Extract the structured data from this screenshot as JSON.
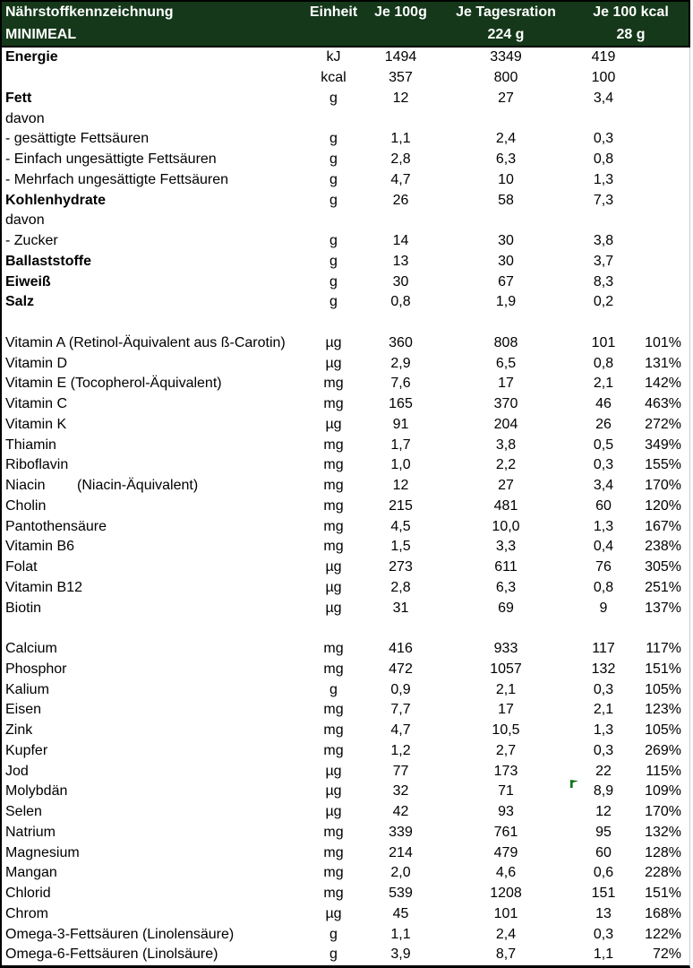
{
  "colors": {
    "header_bg": "#143819",
    "header_text": "#ffffff",
    "body_text": "#000000",
    "border": "#000000",
    "flag_green": "#0e7318"
  },
  "header": {
    "title": "Nährstoffkennzeichnung",
    "product": "MINIMEAL",
    "columns": [
      "Einheit",
      "Je 100g",
      "Je Tagesration",
      "Je 100 kcal"
    ],
    "portion": "224 g",
    "kcal_portion": "28 g"
  },
  "rows": [
    {
      "label": "Energie",
      "bold": true,
      "unit": "kJ",
      "per_100g": "1494",
      "per_day": "3349",
      "per_100kcal": "419",
      "pct": ""
    },
    {
      "label": "",
      "unit": "kcal",
      "per_100g": "357",
      "per_day": "800",
      "per_100kcal": "100",
      "pct": ""
    },
    {
      "label": "Fett",
      "bold": true,
      "unit": "g",
      "per_100g": "12",
      "per_day": "27",
      "per_100kcal": "3,4",
      "pct": ""
    },
    {
      "label": "davon",
      "unit": "",
      "per_100g": "",
      "per_day": "",
      "per_100kcal": "",
      "pct": ""
    },
    {
      "label": "- gesättigte Fettsäuren",
      "indent": true,
      "unit": "g",
      "per_100g": "1,1",
      "per_day": "2,4",
      "per_100kcal": "0,3",
      "pct": ""
    },
    {
      "label": "- Einfach ungesättigte Fettsäuren",
      "indent": true,
      "unit": "g",
      "per_100g": "2,8",
      "per_day": "6,3",
      "per_100kcal": "0,8",
      "pct": ""
    },
    {
      "label": "- Mehrfach ungesättigte Fettsäuren",
      "indent": true,
      "unit": "g",
      "per_100g": "4,7",
      "per_day": "10",
      "per_100kcal": "1,3",
      "pct": ""
    },
    {
      "label": "Kohlenhydrate",
      "bold": true,
      "unit": "g",
      "per_100g": "26",
      "per_day": "58",
      "per_100kcal": "7,3",
      "pct": ""
    },
    {
      "label": "davon",
      "unit": "",
      "per_100g": "",
      "per_day": "",
      "per_100kcal": "",
      "pct": ""
    },
    {
      "label": "- Zucker",
      "indent": true,
      "unit": "g",
      "per_100g": "14",
      "per_day": "30",
      "per_100kcal": "3,8",
      "pct": ""
    },
    {
      "label": "Ballaststoffe",
      "bold": true,
      "unit": "g",
      "per_100g": "13",
      "per_day": "30",
      "per_100kcal": "3,7",
      "pct": ""
    },
    {
      "label": "Eiweiß",
      "bold": true,
      "unit": "g",
      "per_100g": "30",
      "per_day": "67",
      "per_100kcal": "8,3",
      "pct": ""
    },
    {
      "label": "Salz",
      "bold": true,
      "unit": "g",
      "per_100g": "0,8",
      "per_day": "1,9",
      "per_100kcal": "0,2",
      "pct": ""
    },
    {
      "blank": true
    },
    {
      "label": "Vitamin A (Retinol-Äquivalent aus ß-Carotin)",
      "unit": "µg",
      "per_100g": "360",
      "per_day": "808",
      "per_100kcal": "101",
      "pct": "101%"
    },
    {
      "label": "Vitamin D",
      "unit": "µg",
      "per_100g": "2,9",
      "per_day": "6,5",
      "per_100kcal": "0,8",
      "pct": "131%"
    },
    {
      "label": "Vitamin E (Tocopherol-Äquivalent)",
      "unit": "mg",
      "per_100g": "7,6",
      "per_day": "17",
      "per_100kcal": "2,1",
      "pct": "142%"
    },
    {
      "label": "Vitamin C",
      "unit": "mg",
      "per_100g": "165",
      "per_day": "370",
      "per_100kcal": "46",
      "pct": "463%"
    },
    {
      "label": "Vitamin K",
      "unit": "µg",
      "per_100g": "91",
      "per_day": "204",
      "per_100kcal": "26",
      "pct": "272%"
    },
    {
      "label": "Thiamin",
      "unit": "mg",
      "per_100g": "1,7",
      "per_day": "3,8",
      "per_100kcal": "0,5",
      "pct": "349%"
    },
    {
      "label": "Riboflavin",
      "unit": "mg",
      "per_100g": "1,0",
      "per_day": "2,2",
      "per_100kcal": "0,3",
      "pct": "155%"
    },
    {
      "label": "Niacin",
      "label2": "(Niacin-Äquivalent)",
      "unit": "mg",
      "per_100g": "12",
      "per_day": "27",
      "per_100kcal": "3,4",
      "pct": "170%"
    },
    {
      "label": "Cholin",
      "unit": "mg",
      "per_100g": "215",
      "per_day": "481",
      "per_100kcal": "60",
      "pct": "120%"
    },
    {
      "label": "Pantothensäure",
      "unit": "mg",
      "per_100g": "4,5",
      "per_day": "10,0",
      "per_100kcal": "1,3",
      "pct": "167%"
    },
    {
      "label": "Vitamin B6",
      "unit": "mg",
      "per_100g": "1,5",
      "per_day": "3,3",
      "per_100kcal": "0,4",
      "pct": "238%"
    },
    {
      "label": "Folat",
      "unit": "µg",
      "per_100g": "273",
      "per_day": "611",
      "per_100kcal": "76",
      "pct": "305%"
    },
    {
      "label": "Vitamin B12",
      "unit": "µg",
      "per_100g": "2,8",
      "per_day": "6,3",
      "per_100kcal": "0,8",
      "pct": "251%"
    },
    {
      "label": "Biotin",
      "unit": "µg",
      "per_100g": "31",
      "per_day": "69",
      "per_100kcal": "9",
      "pct": "137%"
    },
    {
      "blank": true
    },
    {
      "label": "Calcium",
      "unit": "mg",
      "per_100g": "416",
      "per_day": "933",
      "per_100kcal": "117",
      "pct": "117%"
    },
    {
      "label": "Phosphor",
      "unit": "mg",
      "per_100g": "472",
      "per_day": "1057",
      "per_100kcal": "132",
      "pct": "151%"
    },
    {
      "label": "Kalium",
      "unit": "g",
      "per_100g": "0,9",
      "per_day": "2,1",
      "per_100kcal": "0,3",
      "pct": "105%"
    },
    {
      "label": "Eisen",
      "unit": "mg",
      "per_100g": "7,7",
      "per_day": "17",
      "per_100kcal": "2,1",
      "pct": "123%"
    },
    {
      "label": "Zink",
      "unit": "mg",
      "per_100g": "4,7",
      "per_day": "10,5",
      "per_100kcal": "1,3",
      "pct": "105%"
    },
    {
      "label": "Kupfer",
      "unit": "mg",
      "per_100g": "1,2",
      "per_day": "2,7",
      "per_100kcal": "0,3",
      "pct": "269%"
    },
    {
      "label": "Jod",
      "unit": "µg",
      "per_100g": "77",
      "per_day": "173",
      "per_100kcal": "22",
      "pct": "115%"
    },
    {
      "label": "Molybdän",
      "unit": "µg",
      "per_100g": "32",
      "per_day": "71",
      "per_100kcal": "8,9",
      "pct": "109%",
      "marker": "green-flag"
    },
    {
      "label": "Selen",
      "unit": "µg",
      "per_100g": "42",
      "per_day": "93",
      "per_100kcal": "12",
      "pct": "170%"
    },
    {
      "label": "Natrium",
      "unit": "mg",
      "per_100g": "339",
      "per_day": "761",
      "per_100kcal": "95",
      "pct": "132%"
    },
    {
      "label": "Magnesium",
      "unit": "mg",
      "per_100g": "214",
      "per_day": "479",
      "per_100kcal": "60",
      "pct": "128%"
    },
    {
      "label": "Mangan",
      "unit": "mg",
      "per_100g": "2,0",
      "per_day": "4,6",
      "per_100kcal": "0,6",
      "pct": "228%"
    },
    {
      "label": "Chlorid",
      "unit": "mg",
      "per_100g": "539",
      "per_day": "1208",
      "per_100kcal": "151",
      "pct": "151%"
    },
    {
      "label": "Chrom",
      "unit": "µg",
      "per_100g": "45",
      "per_day": "101",
      "per_100kcal": "13",
      "pct": "168%"
    },
    {
      "label": "Omega-3-Fettsäuren (Linolensäure)",
      "unit": "g",
      "per_100g": "1,1",
      "per_day": "2,4",
      "per_100kcal": "0,3",
      "pct": "122%"
    },
    {
      "label": "Omega-6-Fettsäuren (Linolsäure)",
      "unit": "g",
      "per_100g": "3,9",
      "per_day": "8,7",
      "per_100kcal": "1,1",
      "pct": "72%"
    }
  ]
}
